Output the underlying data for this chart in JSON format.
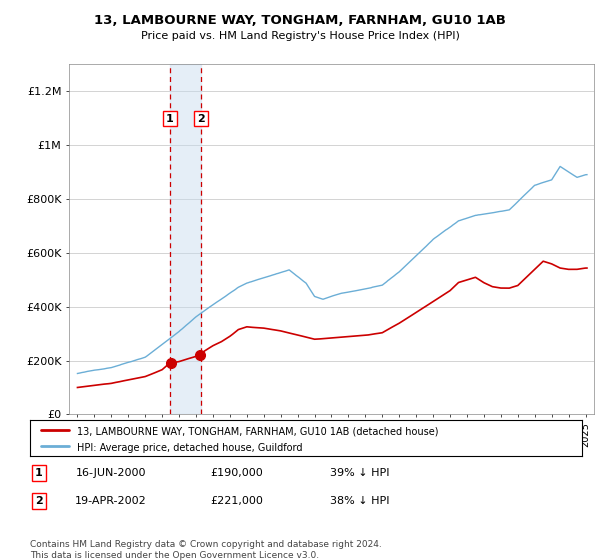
{
  "title": "13, LAMBOURNE WAY, TONGHAM, FARNHAM, GU10 1AB",
  "subtitle": "Price paid vs. HM Land Registry's House Price Index (HPI)",
  "legend_line1": "13, LAMBOURNE WAY, TONGHAM, FARNHAM, GU10 1AB (detached house)",
  "legend_line2": "HPI: Average price, detached house, Guildford",
  "footnote": "Contains HM Land Registry data © Crown copyright and database right 2024.\nThis data is licensed under the Open Government Licence v3.0.",
  "transactions": [
    {
      "label": "1",
      "date": "16-JUN-2000",
      "price": 190000,
      "pct": "39% ↓ HPI",
      "x": 2000.46
    },
    {
      "label": "2",
      "date": "19-APR-2002",
      "price": 221000,
      "pct": "38% ↓ HPI",
      "x": 2002.29
    }
  ],
  "hpi_color": "#6baed6",
  "price_color": "#cc0000",
  "vline_color": "#cc0000",
  "shade_color": "#c6dbef",
  "ylim": [
    0,
    1300000
  ],
  "xlim_start": 1994.5,
  "xlim_end": 2025.5,
  "yticks": [
    0,
    200000,
    400000,
    600000,
    800000,
    1000000,
    1200000
  ],
  "ytick_labels": [
    "£0",
    "£200K",
    "£400K",
    "£600K",
    "£800K",
    "£1M",
    "£1.2M"
  ]
}
